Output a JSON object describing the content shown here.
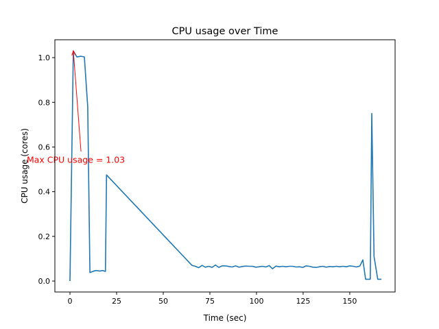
{
  "chart_data": {
    "type": "line",
    "title": "CPU usage over Time",
    "xlabel": "Time (sec)",
    "ylabel": "CPU usage (cores)",
    "xlim": [
      -8.1,
      174.3
    ],
    "ylim": [
      -0.049,
      1.08
    ],
    "xticks": [
      0,
      25,
      50,
      75,
      100,
      125,
      150
    ],
    "xtick_labels": [
      "0",
      "25",
      "50",
      "75",
      "100",
      "125",
      "150"
    ],
    "yticks": [
      0.0,
      0.2,
      0.4,
      0.6,
      0.8,
      1.0
    ],
    "ytick_labels": [
      "0.0",
      "0.2",
      "0.4",
      "0.6",
      "0.8",
      "1.0"
    ],
    "grid": false,
    "series": [
      {
        "name": "CPU usage",
        "color": "#1f77b4",
        "x": [
          0,
          1.8,
          3.7,
          5.9,
          7.7,
          9.5,
          10.7,
          12.5,
          14,
          16,
          17.5,
          19,
          19.6,
          65.4,
          67.2,
          69,
          70.8,
          72.6,
          74.4,
          76.2,
          78,
          79.8,
          81.6,
          83.4,
          85.2,
          87,
          88.8,
          90.6,
          92.4,
          94.2,
          96,
          97.8,
          99.6,
          101.4,
          103.2,
          105,
          106.8,
          108.6,
          110.4,
          112.2,
          114,
          115.8,
          117.6,
          119.4,
          121.2,
          123,
          124.8,
          126.6,
          128.4,
          130.2,
          132,
          133.8,
          135.6,
          137.4,
          139.2,
          141,
          142.8,
          144.6,
          146.4,
          148.2,
          150,
          151.8,
          153.6,
          155.4,
          157,
          158.5,
          161,
          161.8,
          163,
          165,
          167
        ],
        "y": [
          0,
          1.03,
          1.003,
          1.006,
          1.003,
          0.78,
          0.038,
          0.044,
          0.047,
          0.045,
          0.047,
          0.043,
          0.475,
          0.07,
          0.066,
          0.06,
          0.07,
          0.062,
          0.066,
          0.061,
          0.072,
          0.061,
          0.068,
          0.068,
          0.065,
          0.063,
          0.068,
          0.062,
          0.065,
          0.067,
          0.066,
          0.066,
          0.062,
          0.064,
          0.066,
          0.063,
          0.069,
          0.055,
          0.067,
          0.064,
          0.066,
          0.064,
          0.066,
          0.066,
          0.063,
          0.064,
          0.061,
          0.068,
          0.066,
          0.062,
          0.061,
          0.064,
          0.066,
          0.062,
          0.065,
          0.064,
          0.066,
          0.064,
          0.066,
          0.064,
          0.068,
          0.066,
          0.063,
          0.067,
          0.095,
          0.008,
          0.008,
          0.75,
          0.11,
          0.008,
          0.008
        ]
      }
    ],
    "annotations": [
      {
        "text": "Max CPU usage = 1.03",
        "color": "#ff0000",
        "xy": [
          1.8,
          1.03
        ],
        "xytext": [
          5.9,
          0.58
        ],
        "text_pos": [
          -23.2,
          0.53
        ]
      }
    ]
  }
}
